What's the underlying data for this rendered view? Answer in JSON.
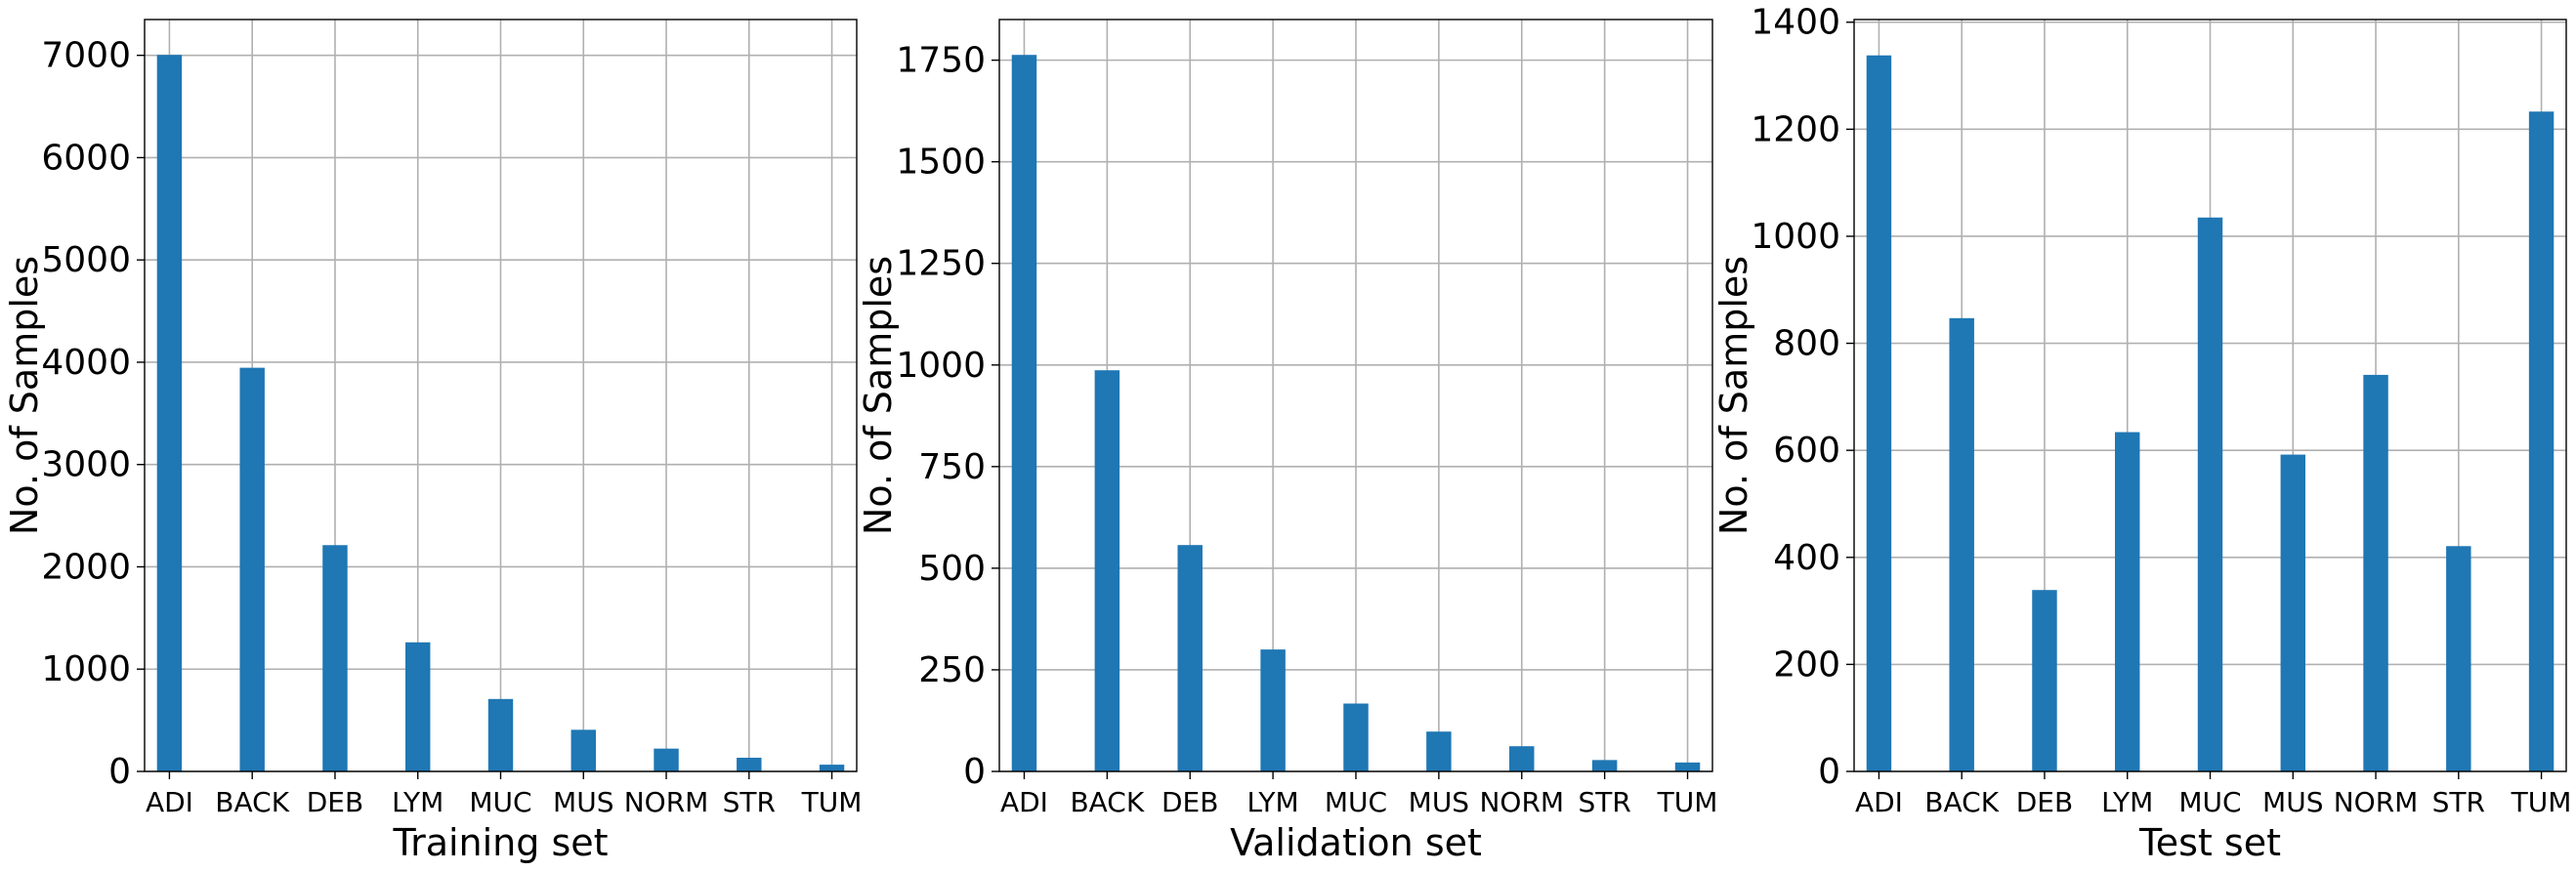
{
  "chart_data": [
    {
      "type": "bar",
      "categories": [
        "ADI",
        "BACK",
        "DEB",
        "LYM",
        "MUC",
        "MUS",
        "NORM",
        "STR",
        "TUM"
      ],
      "values": [
        7004,
        3946,
        2212,
        1262,
        708,
        407,
        223,
        134,
        66
      ],
      "xlabel": "Training set",
      "ylabel": "No. of Samples",
      "ylim": [
        0,
        7350
      ],
      "yticks": [
        0,
        1000,
        2000,
        3000,
        4000,
        5000,
        6000,
        7000
      ],
      "grid": true,
      "bar_color": "#1f77b4"
    },
    {
      "type": "bar",
      "categories": [
        "ADI",
        "BACK",
        "DEB",
        "LYM",
        "MUC",
        "MUS",
        "NORM",
        "STR",
        "TUM"
      ],
      "values": [
        1763,
        987,
        557,
        300,
        167,
        98,
        62,
        28,
        22
      ],
      "xlabel": "Validation set",
      "ylabel": "No. of Samples",
      "ylim": [
        0,
        1850
      ],
      "yticks": [
        0,
        250,
        500,
        750,
        1000,
        1250,
        1500,
        1750
      ],
      "grid": true,
      "bar_color": "#1f77b4"
    },
    {
      "type": "bar",
      "categories": [
        "ADI",
        "BACK",
        "DEB",
        "LYM",
        "MUC",
        "MUS",
        "NORM",
        "STR",
        "TUM"
      ],
      "values": [
        1338,
        847,
        339,
        634,
        1035,
        592,
        741,
        421,
        1233
      ],
      "xlabel": "Test set",
      "ylabel": "No. of Samples",
      "ylim": [
        0,
        1405
      ],
      "yticks": [
        0,
        200,
        400,
        600,
        800,
        1000,
        1200,
        1400
      ],
      "grid": true,
      "bar_color": "#1f77b4"
    }
  ]
}
